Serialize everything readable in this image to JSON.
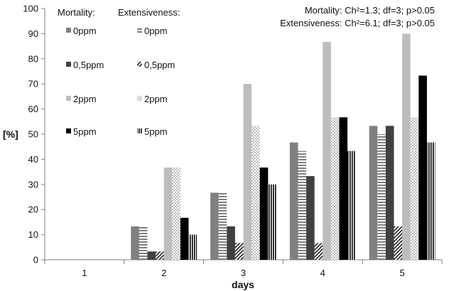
{
  "chart_data": {
    "type": "bar",
    "xlabel": "days",
    "ylabel": "[%]",
    "ylim": [
      0,
      100
    ],
    "yticks": [
      0,
      10,
      20,
      30,
      40,
      50,
      60,
      70,
      80,
      90,
      100
    ],
    "categories": [
      "1",
      "2",
      "3",
      "4",
      "5"
    ],
    "grid": false,
    "legend": {
      "headers": [
        "Mortality:",
        "Extensiveness:"
      ],
      "placement": "top-left"
    },
    "annotations": [
      "Mortality:  Ch²=1.3; df=3; p>0.05",
      "Extensiveness: Ch²=6.1; df=3; p>0.05"
    ],
    "series": [
      {
        "name": "0ppm",
        "group": "Mortality",
        "fill": "solid",
        "color": "#808080",
        "values": [
          0,
          13.3,
          26.7,
          46.7,
          53.3
        ]
      },
      {
        "name": "0ppm",
        "group": "Extensiveness",
        "fill": "hstripe",
        "color": "#808080",
        "values": [
          0,
          13.3,
          26.7,
          43.3,
          50
        ]
      },
      {
        "name": "0,5ppm",
        "group": "Mortality",
        "fill": "solid",
        "color": "#404040",
        "values": [
          0,
          3.3,
          13.3,
          33.3,
          53.3
        ]
      },
      {
        "name": "0,5ppm",
        "group": "Extensiveness",
        "fill": "diagonal",
        "color": "#222222",
        "values": [
          0,
          3.3,
          6.7,
          6.7,
          13.3
        ]
      },
      {
        "name": "2ppm",
        "group": "Mortality",
        "fill": "solid",
        "color": "#bdbdbd",
        "values": [
          0,
          36.7,
          70,
          86.7,
          90
        ]
      },
      {
        "name": "2ppm",
        "group": "Extensiveness",
        "fill": "check",
        "color": "#bdbdbd",
        "values": [
          0,
          36.7,
          53.3,
          56.7,
          56.7
        ]
      },
      {
        "name": "5ppm",
        "group": "Mortality",
        "fill": "solid",
        "color": "#000000",
        "values": [
          0,
          16.7,
          36.7,
          56.7,
          73.3
        ]
      },
      {
        "name": "5ppm",
        "group": "Extensiveness",
        "fill": "vstripe",
        "color": "#000000",
        "values": [
          0,
          10,
          30,
          43.3,
          46.7
        ]
      }
    ]
  }
}
